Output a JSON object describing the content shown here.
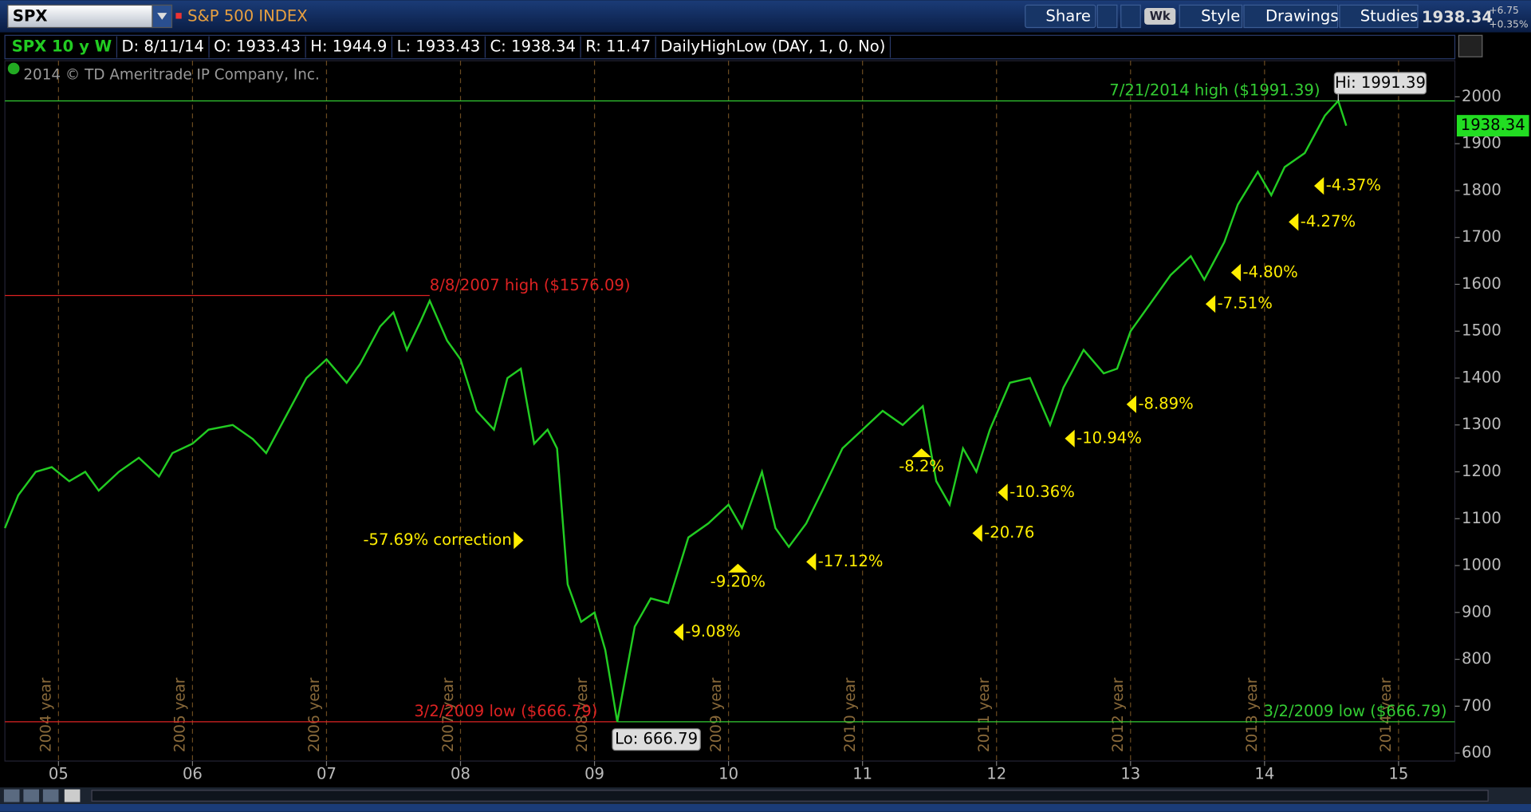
{
  "toolbar": {
    "symbol": "SPX",
    "description": "S&P 500 INDEX",
    "buttons": [
      "Share",
      "Wk",
      "Style",
      "Drawings",
      "Studies"
    ],
    "last": "1938.34",
    "change": "+6.75",
    "change_pct": "+0.35%"
  },
  "info_bar": [
    "SPX 10 y W",
    "D: 8/11/14",
    "O: 1933.43",
    "H: 1944.9",
    "L: 1933.43",
    "C: 1938.34",
    "R: 11.47",
    "DailyHighLow (DAY, 1, 0, No)"
  ],
  "chart_data": {
    "type": "line",
    "watermark": "2014 © TD Ameritrade IP Company, Inc.",
    "color": "#22cc22",
    "x": [
      2004.6,
      2004.7,
      2004.83,
      2004.95,
      2005.08,
      2005.2,
      2005.3,
      2005.45,
      2005.6,
      2005.75,
      2005.85,
      2006.0,
      2006.12,
      2006.3,
      2006.45,
      2006.55,
      2006.7,
      2006.85,
      2007.0,
      2007.15,
      2007.25,
      2007.4,
      2007.5,
      2007.6,
      2007.7,
      2007.77,
      2007.9,
      2008.0,
      2008.12,
      2008.25,
      2008.35,
      2008.45,
      2008.55,
      2008.65,
      2008.72,
      2008.8,
      2008.9,
      2009.0,
      2009.08,
      2009.17,
      2009.3,
      2009.42,
      2009.55,
      2009.7,
      2009.85,
      2010.0,
      2010.1,
      2010.25,
      2010.35,
      2010.45,
      2010.58,
      2010.7,
      2010.85,
      2011.0,
      2011.15,
      2011.3,
      2011.45,
      2011.55,
      2011.65,
      2011.75,
      2011.85,
      2011.95,
      2012.1,
      2012.25,
      2012.4,
      2012.5,
      2012.65,
      2012.8,
      2012.9,
      2013.0,
      2013.15,
      2013.3,
      2013.45,
      2013.55,
      2013.7,
      2013.8,
      2013.95,
      2014.05,
      2014.15,
      2014.3,
      2014.45,
      2014.55,
      2014.61
    ],
    "values": [
      1080,
      1150,
      1200,
      1210,
      1180,
      1200,
      1160,
      1200,
      1230,
      1190,
      1240,
      1260,
      1290,
      1300,
      1270,
      1240,
      1320,
      1400,
      1440,
      1390,
      1430,
      1510,
      1540,
      1460,
      1520,
      1565,
      1480,
      1440,
      1330,
      1290,
      1400,
      1420,
      1260,
      1290,
      1250,
      960,
      880,
      900,
      820,
      666.79,
      870,
      930,
      920,
      1060,
      1090,
      1130,
      1080,
      1200,
      1080,
      1040,
      1090,
      1160,
      1250,
      1290,
      1330,
      1300,
      1340,
      1180,
      1130,
      1250,
      1200,
      1290,
      1390,
      1400,
      1300,
      1380,
      1460,
      1410,
      1420,
      1500,
      1560,
      1620,
      1660,
      1610,
      1690,
      1770,
      1840,
      1790,
      1850,
      1880,
      1960,
      1991.39,
      1938.34
    ],
    "xlim": [
      2004.6,
      2015.42
    ],
    "xticks": [
      {
        "value": 2005,
        "label": "05"
      },
      {
        "value": 2006,
        "label": "06"
      },
      {
        "value": 2007,
        "label": "07"
      },
      {
        "value": 2008,
        "label": "08"
      },
      {
        "value": 2009,
        "label": "09"
      },
      {
        "value": 2010,
        "label": "10"
      },
      {
        "value": 2011,
        "label": "11"
      },
      {
        "value": 2012,
        "label": "12"
      },
      {
        "value": 2013,
        "label": "13"
      },
      {
        "value": 2014,
        "label": "14"
      },
      {
        "value": 2015,
        "label": "15"
      }
    ],
    "period_labels": [
      "2004 year",
      "2005 year",
      "2006 year",
      "2007 year",
      "2008 year",
      "2009 year",
      "2010 year",
      "2011 year",
      "2012 year",
      "2013 year",
      "2014 year"
    ],
    "ylim": [
      583,
      2077
    ],
    "yticks": [
      600,
      700,
      800,
      900,
      1000,
      1100,
      1200,
      1300,
      1400,
      1500,
      1600,
      1700,
      1800,
      1900,
      2000
    ],
    "reference_lines": [
      {
        "label": "7/21/2014 high ($1991.39)",
        "value": 1991.39,
        "color": "#33cc33",
        "from": 2004.6,
        "to": 2015.42
      },
      {
        "label": "8/8/2007 high ($1576.09)",
        "value": 1576.09,
        "color": "#dd2222",
        "from": 2004.6,
        "to": 2007.77
      },
      {
        "label": "3/2/2009 low ($666.79)",
        "value": 666.79,
        "color": "#dd2222",
        "from": 2004.6,
        "to": 2009.17
      },
      {
        "label": "3/2/2009 low ($666.79)",
        "value": 666.79,
        "color": "#33cc33",
        "from": 2009.17,
        "to": 2015.42
      }
    ],
    "hi_label": "Hi: 1991.39",
    "lo_label": "Lo: 666.79",
    "annotations": [
      {
        "text": "-57.69% correction",
        "x": 2008.47,
        "y": 1054,
        "arrow": "right"
      },
      {
        "text": "-9.08%",
        "x": 2009.59,
        "y": 858,
        "arrow": "left"
      },
      {
        "text": "-9.20%",
        "x": 2010.07,
        "y": 1004,
        "arrow": "up"
      },
      {
        "text": "-17.12%",
        "x": 2010.58,
        "y": 1008,
        "arrow": "left"
      },
      {
        "text": "-8.2%",
        "x": 2011.44,
        "y": 1250,
        "arrow": "up"
      },
      {
        "text": "-20.76",
        "x": 2011.82,
        "y": 1069,
        "arrow": "left"
      },
      {
        "text": "-10.36%",
        "x": 2012.01,
        "y": 1156,
        "arrow": "left"
      },
      {
        "text": "-10.94%",
        "x": 2012.51,
        "y": 1271,
        "arrow": "left"
      },
      {
        "text": "-8.89%",
        "x": 2012.97,
        "y": 1344,
        "arrow": "left"
      },
      {
        "text": "-7.51%",
        "x": 2013.56,
        "y": 1558,
        "arrow": "left"
      },
      {
        "text": "-4.80%",
        "x": 2013.75,
        "y": 1625,
        "arrow": "left"
      },
      {
        "text": "-4.27%",
        "x": 2014.18,
        "y": 1733,
        "arrow": "left"
      },
      {
        "text": "-4.37%",
        "x": 2014.37,
        "y": 1810,
        "arrow": "left"
      }
    ]
  }
}
